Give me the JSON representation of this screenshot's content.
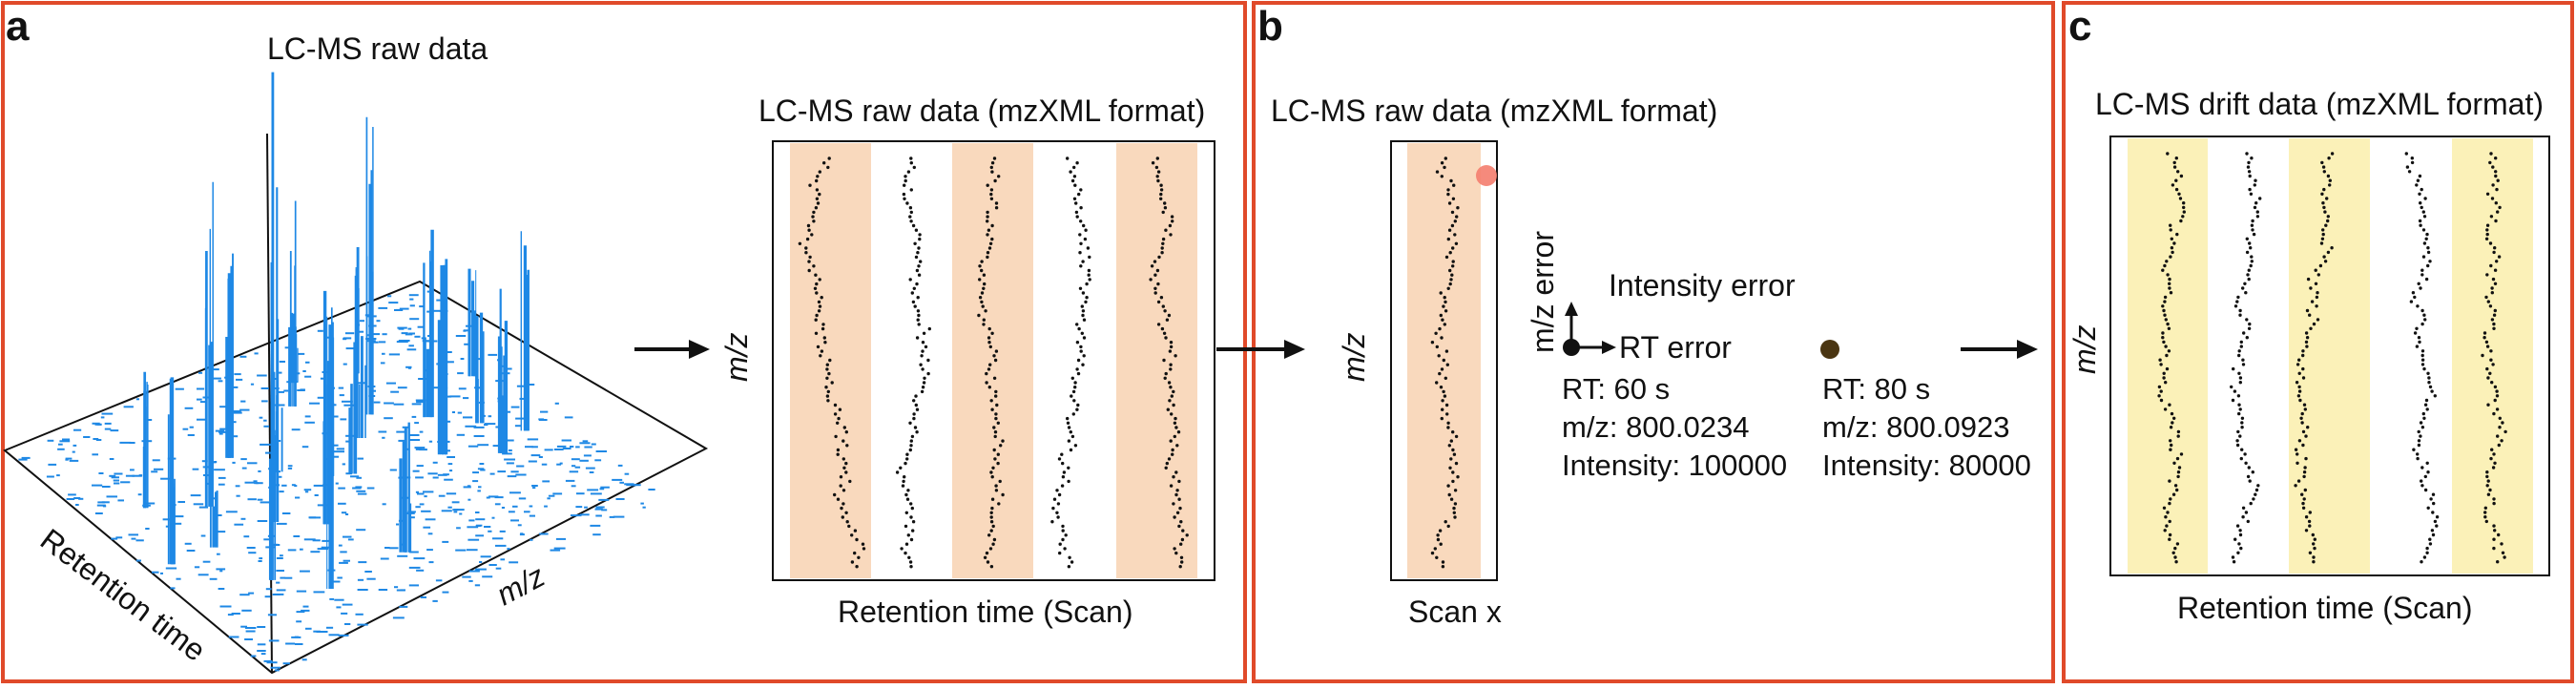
{
  "panels": {
    "a": {
      "letter": "a",
      "title_3d": "LC-MS raw data",
      "axis_retention_3d": "Retention time",
      "axis_mz_3d": "m/z",
      "title_scan": "LC-MS raw data (mzXML format)",
      "axis_mz": "m/z",
      "axis_retention": "Retention time (Scan)",
      "stripe_color": "#f9d9bd"
    },
    "b": {
      "letter": "b",
      "title": "LC-MS raw data (mzXML format)",
      "axis_mz": "m/z",
      "axis_scan": "Scan x",
      "stripe_color": "#f9d9bd",
      "highlight_color": "#f47d6e",
      "mz_error_label": "m/z error",
      "intensity_error_label": "Intensity error",
      "rt_error_label": "RT error",
      "point1": {
        "rt": "RT: 60 s",
        "mz": "m/z: 800.0234",
        "intensity": "Intensity: 100000"
      },
      "point2": {
        "rt": "RT: 80 s",
        "mz": "m/z: 800.0923",
        "intensity": "Intensity: 80000",
        "color": "#4a3512"
      }
    },
    "c": {
      "letter": "c",
      "title": "LC-MS drift data (mzXML format)",
      "axis_mz": "m/z",
      "axis_retention": "Retention time (Scan)",
      "stripe_color": "#fbf1b8"
    }
  },
  "colors": {
    "frame": "#e04a2a",
    "peaks": "#1e88e5",
    "dots": "#111111"
  }
}
